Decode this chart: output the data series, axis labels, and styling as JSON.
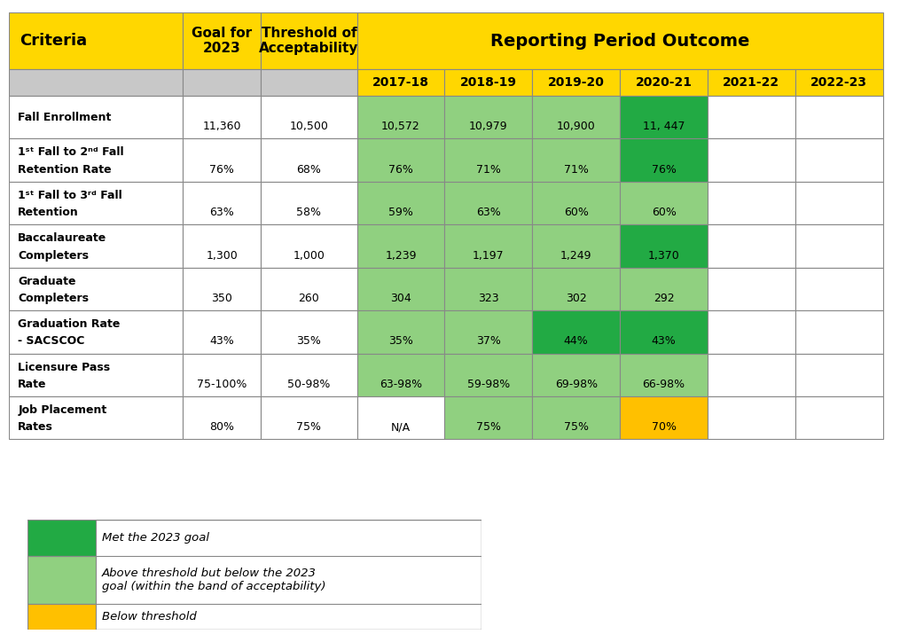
{
  "subheader_years": [
    "2017-18",
    "2018-19",
    "2019-20",
    "2020-21",
    "2021-22",
    "2022-23"
  ],
  "rows": [
    {
      "criteria_line1": "Fall Enrollment",
      "criteria_line2": "",
      "goal": "11,360",
      "threshold": "10,500",
      "values": [
        "10,572",
        "10,979",
        "10,900",
        "11, 447",
        "",
        ""
      ],
      "colors": [
        "light_green",
        "light_green",
        "light_green",
        "dark_green",
        "white",
        "white"
      ],
      "two_line": false
    },
    {
      "criteria_line1": "1ˢᵗ Fall to 2ⁿᵈ Fall",
      "criteria_line2": "Retention Rate",
      "goal": "76%",
      "threshold": "68%",
      "values": [
        "76%",
        "71%",
        "71%",
        "76%",
        "",
        ""
      ],
      "colors": [
        "light_green",
        "light_green",
        "light_green",
        "dark_green",
        "white",
        "white"
      ],
      "two_line": true
    },
    {
      "criteria_line1": "1ˢᵗ Fall to 3ʳᵈ Fall",
      "criteria_line2": "Retention",
      "goal": "63%",
      "threshold": "58%",
      "values": [
        "59%",
        "63%",
        "60%",
        "60%",
        "",
        ""
      ],
      "colors": [
        "light_green",
        "light_green",
        "light_green",
        "light_green",
        "white",
        "white"
      ],
      "two_line": true
    },
    {
      "criteria_line1": "Baccalaureate",
      "criteria_line2": "Completers",
      "goal": "1,300",
      "threshold": "1,000",
      "values": [
        "1,239",
        "1,197",
        "1,249",
        "1,370",
        "",
        ""
      ],
      "colors": [
        "light_green",
        "light_green",
        "light_green",
        "dark_green",
        "white",
        "white"
      ],
      "two_line": true
    },
    {
      "criteria_line1": "Graduate",
      "criteria_line2": "Completers",
      "goal": "350",
      "threshold": "260",
      "values": [
        "304",
        "323",
        "302",
        "292",
        "",
        ""
      ],
      "colors": [
        "light_green",
        "light_green",
        "light_green",
        "light_green",
        "white",
        "white"
      ],
      "two_line": true
    },
    {
      "criteria_line1": "Graduation Rate",
      "criteria_line2": "- SACSCOC",
      "goal": "43%",
      "threshold": "35%",
      "values": [
        "35%",
        "37%",
        "44%",
        "43%",
        "",
        ""
      ],
      "colors": [
        "light_green",
        "light_green",
        "dark_green",
        "dark_green",
        "white",
        "white"
      ],
      "two_line": true
    },
    {
      "criteria_line1": "Licensure Pass",
      "criteria_line2": "Rate",
      "goal": "75-100%",
      "threshold": "50-98%",
      "values": [
        "63-98%",
        "59-98%",
        "69-98%",
        "66-98%",
        "",
        ""
      ],
      "colors": [
        "light_green",
        "light_green",
        "light_green",
        "light_green",
        "white",
        "white"
      ],
      "two_line": true
    },
    {
      "criteria_line1": "Job Placement",
      "criteria_line2": "Rates",
      "goal": "80%",
      "threshold": "75%",
      "values": [
        "N/A",
        "75%",
        "75%",
        "70%",
        "",
        ""
      ],
      "colors": [
        "white",
        "light_green",
        "light_green",
        "yellow",
        "white",
        "white"
      ],
      "two_line": true
    }
  ],
  "colors": {
    "header_yellow": "#FFD700",
    "dark_green": "#22AA44",
    "light_green": "#90D080",
    "yellow": "#FFC000",
    "white": "#FFFFFF",
    "light_gray": "#C8C8C8",
    "border": "#888888"
  },
  "legend_items": [
    {
      "color_key": "dark_green",
      "text": "Met the 2023 goal"
    },
    {
      "color_key": "light_green",
      "text": "Above threshold but below the 2023\ngoal (within the band of acceptability)"
    },
    {
      "color_key": "yellow",
      "text": "Below threshold"
    }
  ]
}
